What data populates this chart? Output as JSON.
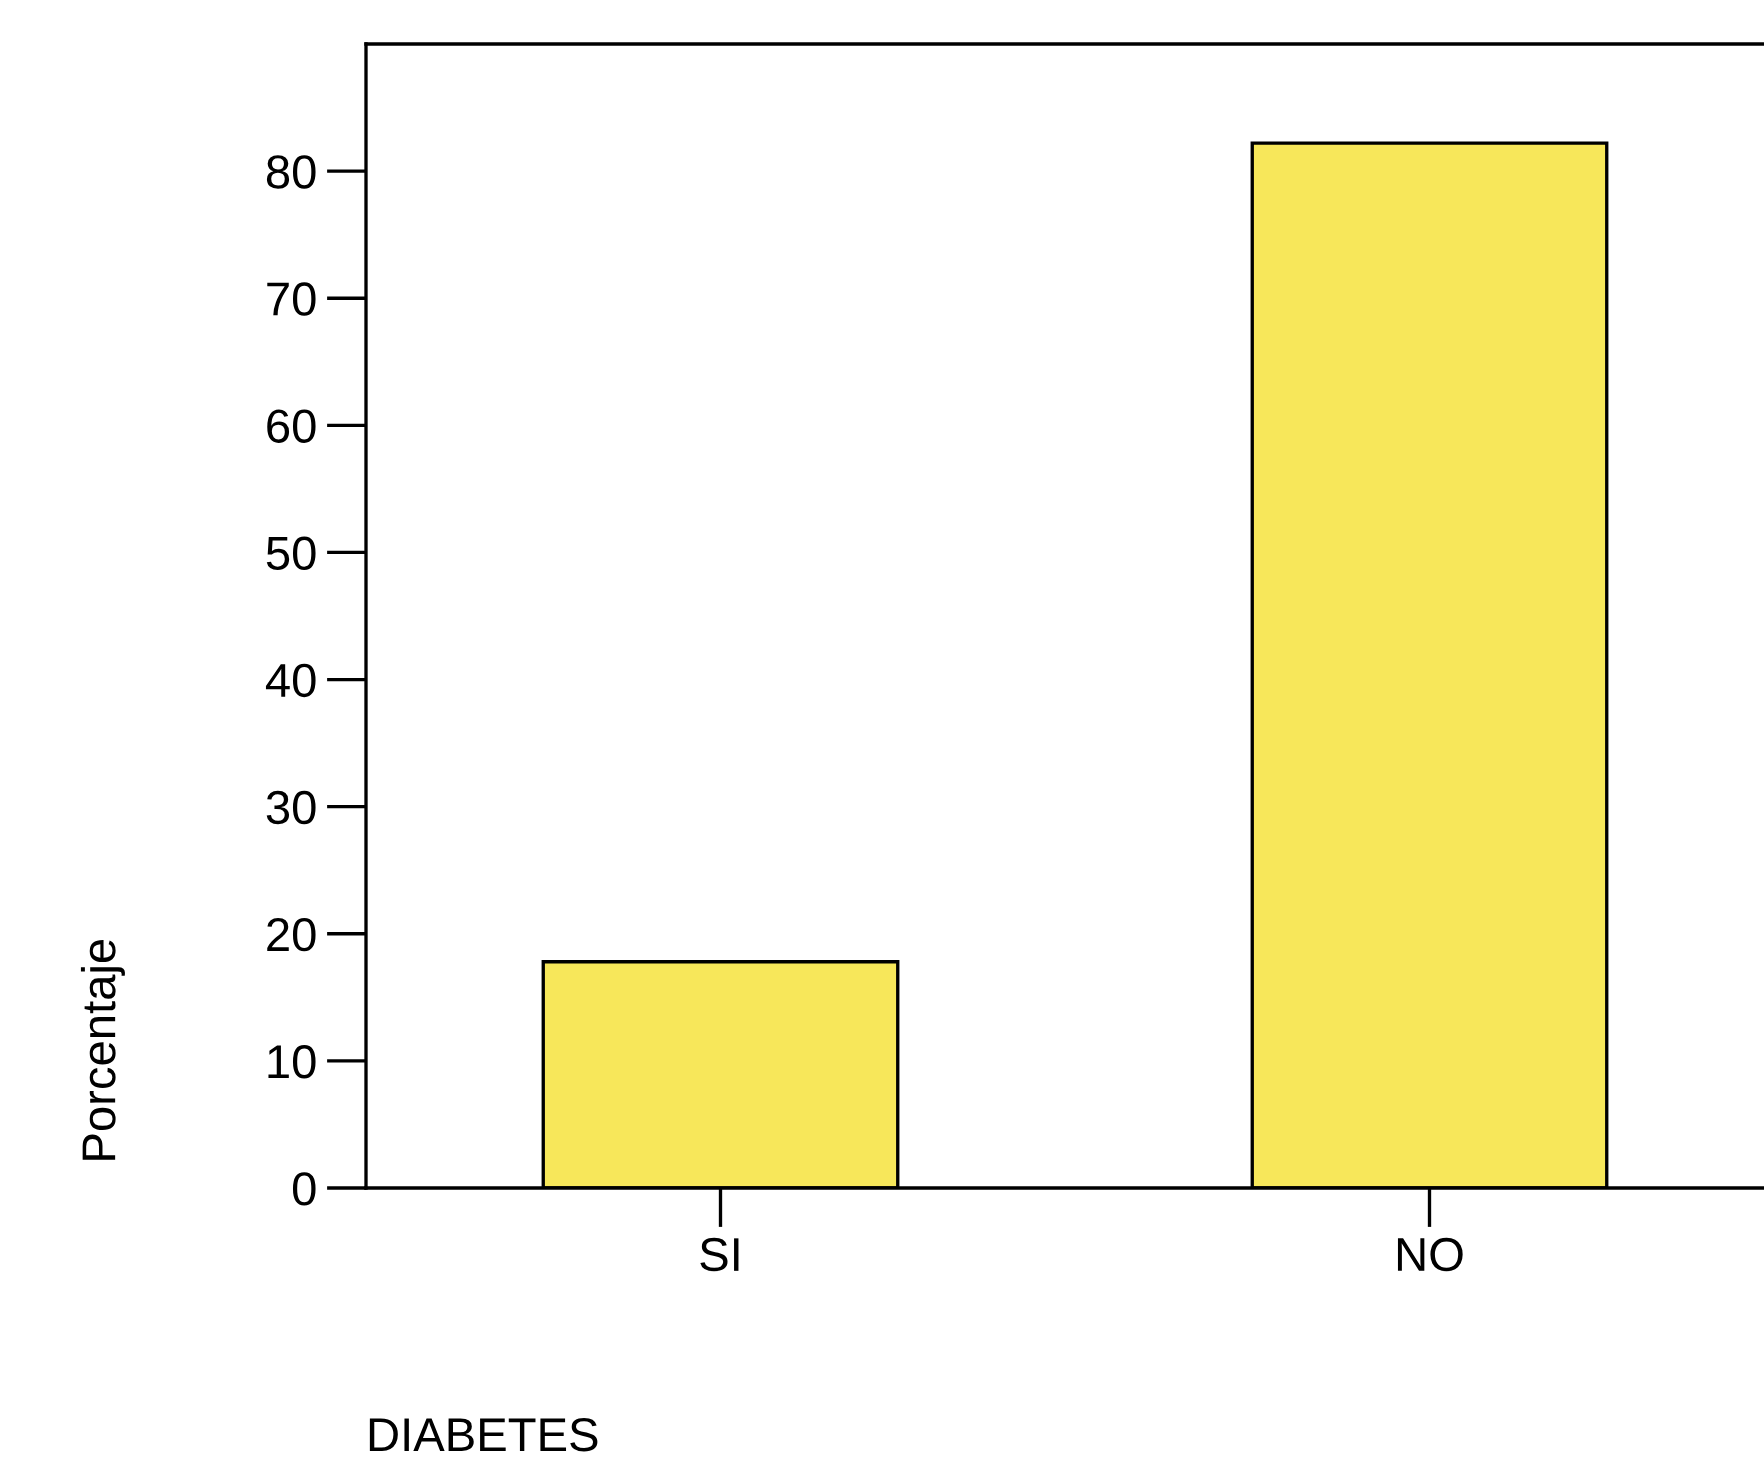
{
  "chart_data": {
    "type": "bar",
    "categories": [
      "SI",
      "NO"
    ],
    "values": [
      17.8,
      82.2
    ],
    "color": "#f7e75a",
    "xlabel": "DIABETES",
    "ylabel": "Porcentaje",
    "ylim": [
      0,
      90
    ],
    "yticks": [
      0,
      10,
      20,
      30,
      40,
      50,
      60,
      70,
      80
    ],
    "grid": false,
    "legend": false
  }
}
